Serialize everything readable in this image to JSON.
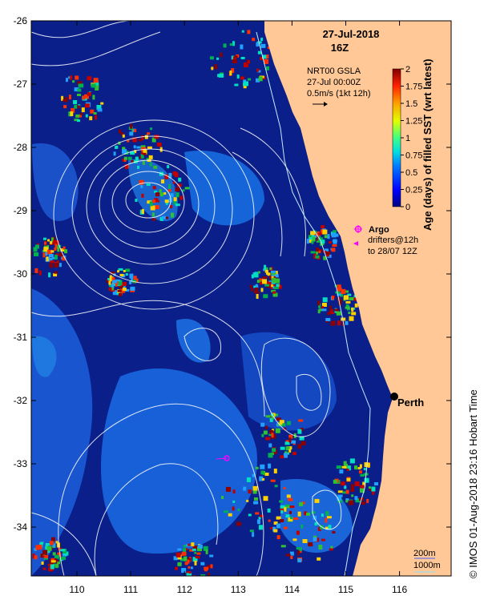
{
  "title": {
    "date": "27-Jul-2018",
    "time": "16Z"
  },
  "overlay": {
    "product": "NRT00 GSLA",
    "product_time": "27-Jul 00:00Z",
    "vector_scale": "0.5m/s (1kt 12h)"
  },
  "argo_legend": {
    "title": "Argo",
    "line1": "drifters@12h",
    "line2": "to 28/07 12Z"
  },
  "city": {
    "name": "Perth"
  },
  "depth_legend": {
    "line1": "200m",
    "line2": "1000m"
  },
  "credit": "© IMOS 01-Aug-2018 23:16 Hobart Time",
  "colorbar": {
    "label": "Age (days) of filled SST (wrt latest)",
    "ticks": [
      "2",
      "1.75",
      "1.5",
      "1.25",
      "1",
      "0.75",
      "0.5",
      "0.25",
      "0"
    ],
    "min": 0,
    "max": 2
  },
  "axes": {
    "lon_ticks": [
      "110",
      "111",
      "112",
      "113",
      "114",
      "115",
      "116"
    ],
    "lat_ticks": [
      "-26",
      "-27",
      "-28",
      "-29",
      "-30",
      "-31",
      "-32",
      "-33",
      "-34"
    ]
  },
  "colors": {
    "ocean_deep": "#0a1f8a",
    "ocean_mid": "#1246c8",
    "ocean_light": "#1e78e0",
    "land": "#ffc896",
    "contour": "#ffffff",
    "argo": "#ff00ff",
    "coast_mark": "#000000"
  },
  "icons": [
    "argo-float-icon",
    "drifter-arrow-icon",
    "perth-marker-icon"
  ]
}
